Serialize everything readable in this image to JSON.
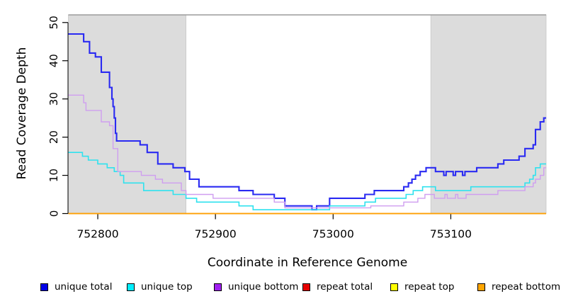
{
  "figure": {
    "x_axis_title": "Coordinate in Reference Genome",
    "y_axis_title": "Read Coverage Depth"
  },
  "legend": {
    "items": [
      {
        "label": "unique total",
        "color": "#0000e8"
      },
      {
        "label": "unique top",
        "color": "#00eeff"
      },
      {
        "label": "unique bottom",
        "color": "#a020f0"
      },
      {
        "label": "repeat total",
        "color": "#e60000"
      },
      {
        "label": "repeat top",
        "color": "#ffff00"
      },
      {
        "label": "repeat bottom",
        "color": "#ffa500"
      }
    ]
  },
  "chart_data": {
    "type": "line",
    "step": true,
    "title": "",
    "xlabel": "Coordinate in Reference Genome",
    "ylabel": "Read Coverage Depth",
    "xlim": [
      752775,
      753181
    ],
    "ylim": [
      0,
      52
    ],
    "grid": false,
    "x_ticks": [
      752800,
      752900,
      753000,
      753100
    ],
    "x_tick_labels": [
      "752800",
      "752900",
      "753000",
      "753100"
    ],
    "y_ticks": [
      0,
      10,
      20,
      30,
      40,
      50
    ],
    "y_tick_labels": [
      "0",
      "10",
      "20",
      "30",
      "40",
      "50"
    ],
    "region_fill": "#dcdcdc",
    "shaded_regions": [
      {
        "x0": 752775,
        "x1": 752875
      },
      {
        "x0": 753083,
        "x1": 753181
      }
    ],
    "series": [
      {
        "name": "unique total",
        "color": "#2a2af2",
        "width": 2.1,
        "points": [
          [
            752775,
            47
          ],
          [
            752788,
            45
          ],
          [
            752793,
            42
          ],
          [
            752798,
            41
          ],
          [
            752803,
            37
          ],
          [
            752810,
            33
          ],
          [
            752812,
            30
          ],
          [
            752813,
            28
          ],
          [
            752814,
            25
          ],
          [
            752815,
            21
          ],
          [
            752816,
            19
          ],
          [
            752836,
            18
          ],
          [
            752842,
            16
          ],
          [
            752851,
            13
          ],
          [
            752864,
            12
          ],
          [
            752874,
            11
          ],
          [
            752878,
            9
          ],
          [
            752886,
            7
          ],
          [
            752920,
            6
          ],
          [
            752932,
            5
          ],
          [
            752950,
            4
          ],
          [
            752959,
            2
          ],
          [
            752982,
            1
          ],
          [
            752986,
            2
          ],
          [
            752997,
            4
          ],
          [
            753027,
            5
          ],
          [
            753035,
            6
          ],
          [
            753060,
            7
          ],
          [
            753064,
            8
          ],
          [
            753067,
            9
          ],
          [
            753070,
            10
          ],
          [
            753074,
            11
          ],
          [
            753079,
            12
          ],
          [
            753087,
            11
          ],
          [
            753094,
            10
          ],
          [
            753096,
            11
          ],
          [
            753102,
            10
          ],
          [
            753104,
            11
          ],
          [
            753110,
            10
          ],
          [
            753112,
            11
          ],
          [
            753122,
            12
          ],
          [
            753140,
            13
          ],
          [
            753145,
            14
          ],
          [
            753158,
            15
          ],
          [
            753163,
            17
          ],
          [
            753170,
            18
          ],
          [
            753172,
            22
          ],
          [
            753176,
            24
          ],
          [
            753179,
            25
          ]
        ]
      },
      {
        "name": "unique top",
        "color": "#2fe2ee",
        "width": 1.6,
        "points": [
          [
            752775,
            16
          ],
          [
            752787,
            15
          ],
          [
            752792,
            14
          ],
          [
            752800,
            13
          ],
          [
            752808,
            12
          ],
          [
            752814,
            11
          ],
          [
            752819,
            10
          ],
          [
            752822,
            8
          ],
          [
            752839,
            6
          ],
          [
            752864,
            5
          ],
          [
            752875,
            4
          ],
          [
            752884,
            3
          ],
          [
            752920,
            2
          ],
          [
            752932,
            1
          ],
          [
            752997,
            2
          ],
          [
            753027,
            3
          ],
          [
            753036,
            4
          ],
          [
            753062,
            5
          ],
          [
            753068,
            6
          ],
          [
            753076,
            7
          ],
          [
            753087,
            6
          ],
          [
            753117,
            7
          ],
          [
            753163,
            8
          ],
          [
            753167,
            9
          ],
          [
            753170,
            10
          ],
          [
            753172,
            12
          ],
          [
            753176,
            13
          ]
        ]
      },
      {
        "name": "unique bottom",
        "color": "#cf9ef0",
        "width": 1.4,
        "points": [
          [
            752775,
            31
          ],
          [
            752788,
            29
          ],
          [
            752790,
            27
          ],
          [
            752803,
            24
          ],
          [
            752810,
            23
          ],
          [
            752813,
            17
          ],
          [
            752817,
            11
          ],
          [
            752837,
            10
          ],
          [
            752849,
            9
          ],
          [
            752855,
            8
          ],
          [
            752871,
            6
          ],
          [
            752875,
            5
          ],
          [
            752898,
            4
          ],
          [
            752950,
            3
          ],
          [
            752959,
            1.5
          ],
          [
            753032,
            2
          ],
          [
            753060,
            3
          ],
          [
            753072,
            4
          ],
          [
            753078,
            5
          ],
          [
            753086,
            4
          ],
          [
            753095,
            5
          ],
          [
            753097,
            4
          ],
          [
            753104,
            5
          ],
          [
            753106,
            4
          ],
          [
            753113,
            5
          ],
          [
            753140,
            6
          ],
          [
            753163,
            7
          ],
          [
            753170,
            8
          ],
          [
            753172,
            9
          ],
          [
            753176,
            10
          ],
          [
            753179,
            12
          ]
        ]
      },
      {
        "name": "repeat total",
        "color": "#e60000",
        "width": 1.3,
        "points": [
          [
            752775,
            0
          ]
        ]
      },
      {
        "name": "repeat top",
        "color": "#ffff00",
        "width": 1.3,
        "points": [
          [
            752775,
            0
          ]
        ]
      },
      {
        "name": "repeat bottom",
        "color": "#ff9f00",
        "width": 1.7,
        "points": [
          [
            752775,
            0
          ]
        ]
      }
    ]
  }
}
